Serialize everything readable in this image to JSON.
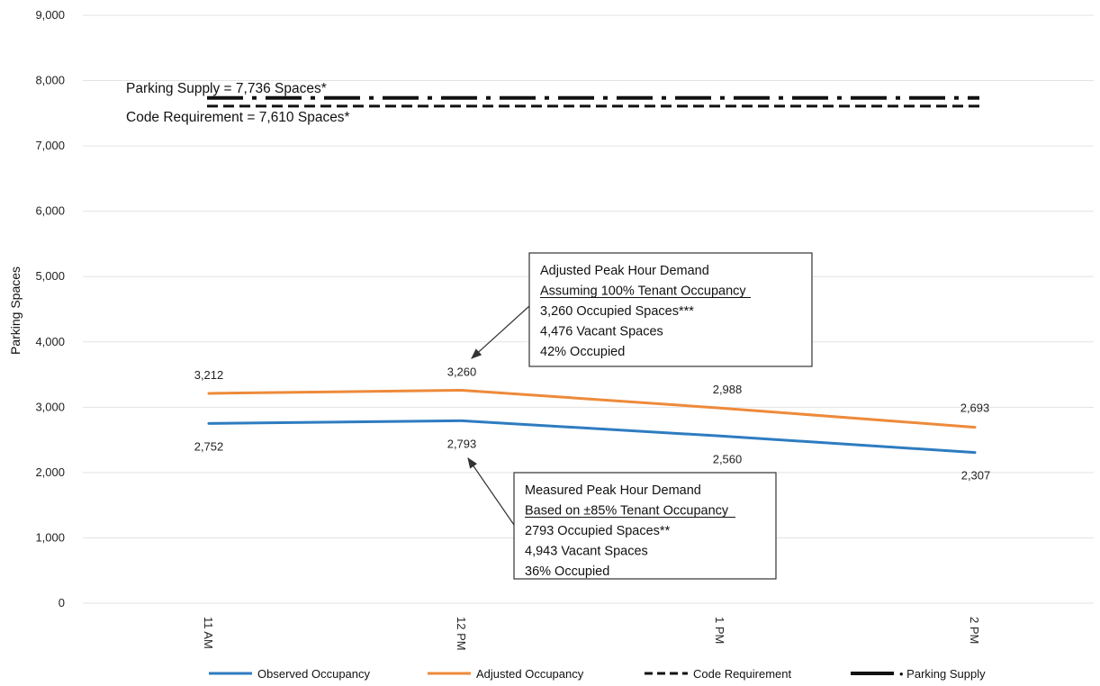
{
  "chart_data": {
    "type": "line",
    "ylabel": "Parking Spaces",
    "ylim": [
      0,
      9000
    ],
    "yticks": [
      0,
      1000,
      2000,
      3000,
      4000,
      5000,
      6000,
      7000,
      8000,
      9000
    ],
    "ytick_labels": [
      "0",
      "1,000",
      "2,000",
      "3,000",
      "4,000",
      "5,000",
      "6,000",
      "7,000",
      "8,000",
      "9,000"
    ],
    "categories": [
      "11 AM",
      "12 PM",
      "1 PM",
      "2 PM"
    ],
    "grid": "horizontal",
    "legend_position": "bottom",
    "series": [
      {
        "name": "Observed Occupancy",
        "values": [
          2752,
          2793,
          2560,
          2307
        ],
        "labels": [
          "2,752",
          "2,793",
          "2,560",
          "2,307"
        ],
        "color": "#2e7cc0",
        "style": "solid"
      },
      {
        "name": "Adjusted Occupancy",
        "values": [
          3212,
          3260,
          2988,
          2693
        ],
        "labels": [
          "3,212",
          "3,260",
          "2,988",
          "2,693"
        ],
        "color": "#ee8a3a",
        "style": "solid"
      },
      {
        "name": "Code Requirement",
        "values": [
          7610,
          7610,
          7610,
          7610
        ],
        "color": "#111111",
        "style": "dashed"
      },
      {
        "name": "Parking Supply",
        "legend_label": "• Parking Supply",
        "values": [
          7736,
          7736,
          7736,
          7736
        ],
        "color": "#111111",
        "style": "dash-dot"
      }
    ],
    "annotations": {
      "supply_label": "Parking Supply = 7,736 Spaces*",
      "code_label": "Code Requirement = 7,610 Spaces*",
      "adjusted_box": [
        "Adjusted Peak Hour Demand",
        "Assuming 100% Tenant Occupancy",
        "3,260 Occupied Spaces***",
        "4,476 Vacant Spaces",
        "42% Occupied"
      ],
      "measured_box": [
        "Measured Peak Hour Demand",
        "Based on ±85% Tenant Occupancy",
        "2793 Occupied Spaces**",
        "4,943 Vacant Spaces",
        "36% Occupied"
      ]
    }
  }
}
